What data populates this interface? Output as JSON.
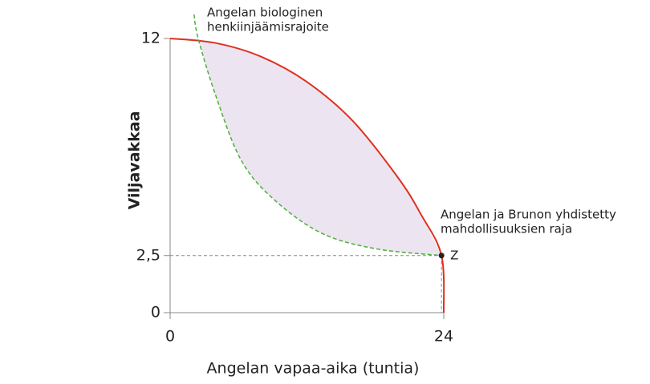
{
  "chart_data": {
    "type": "frontier",
    "x_label": "Angelan vapaa-aika (tuntia)",
    "y_label": "Viljavakkaa",
    "xlim": [
      0,
      24
    ],
    "ylim": [
      0,
      12
    ],
    "xticks": [
      0,
      24
    ],
    "yticks": [
      0,
      {
        "value": 2.5,
        "label": "2,5"
      },
      12
    ],
    "series": [
      {
        "name": [
          "Angelan ja Brunon yhdistetty",
          "mahdollisuuksien raja"
        ],
        "color": "#e0301e",
        "x": [
          0,
          4,
          8,
          12,
          16,
          20,
          22,
          23.8,
          24
        ],
        "values": [
          12,
          11.8,
          11.2,
          10.1,
          8.4,
          5.9,
          4.3,
          2.5,
          0
        ]
      },
      {
        "name": [
          "Angelan biologinen",
          "henkiinjäämisrajoite"
        ],
        "color": "#4caf3a",
        "x": [
          2.1,
          2.46,
          4,
          6.2,
          9,
          13.2,
          18,
          23.8
        ],
        "values": [
          13.05,
          12,
          9.5,
          6.7,
          5.0,
          3.5,
          2.8,
          2.5
        ]
      }
    ],
    "fill_color": "#ece4f1",
    "point": {
      "label": "Z",
      "x": 23.8,
      "y": 2.5
    }
  }
}
